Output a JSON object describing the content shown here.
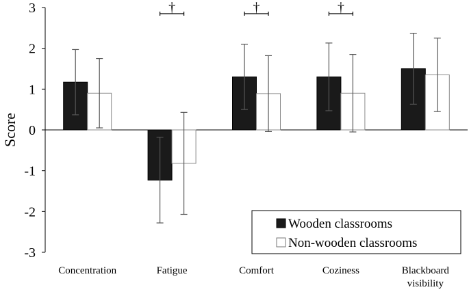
{
  "chart_data": {
    "type": "bar",
    "title": "",
    "xlabel": "",
    "ylabel": "Score",
    "ylim": [
      -3,
      3
    ],
    "yticks": [
      3,
      2,
      1,
      0,
      -1,
      -2,
      -3
    ],
    "grid": false,
    "legend_position": "bottom-right",
    "categories": [
      [
        "Concentration"
      ],
      [
        "Fatigue"
      ],
      [
        "Comfort"
      ],
      [
        "Coziness"
      ],
      [
        "Blackboard",
        "visibility"
      ]
    ],
    "series": [
      {
        "name": "Wooden classrooms",
        "color": "#1a1a1a",
        "values": [
          1.17,
          -1.23,
          1.3,
          1.3,
          1.5
        ],
        "error": [
          0.8,
          1.05,
          0.8,
          0.83,
          0.87
        ]
      },
      {
        "name": "Non-wooden classrooms",
        "color": "#ffffff",
        "values": [
          0.9,
          -0.82,
          0.89,
          0.9,
          1.35
        ],
        "error": [
          0.85,
          1.25,
          0.93,
          0.95,
          0.9
        ]
      }
    ],
    "annotations": [
      {
        "category_index": 1,
        "symbol": "†"
      },
      {
        "category_index": 2,
        "symbol": "†"
      },
      {
        "category_index": 3,
        "symbol": "†"
      }
    ]
  }
}
